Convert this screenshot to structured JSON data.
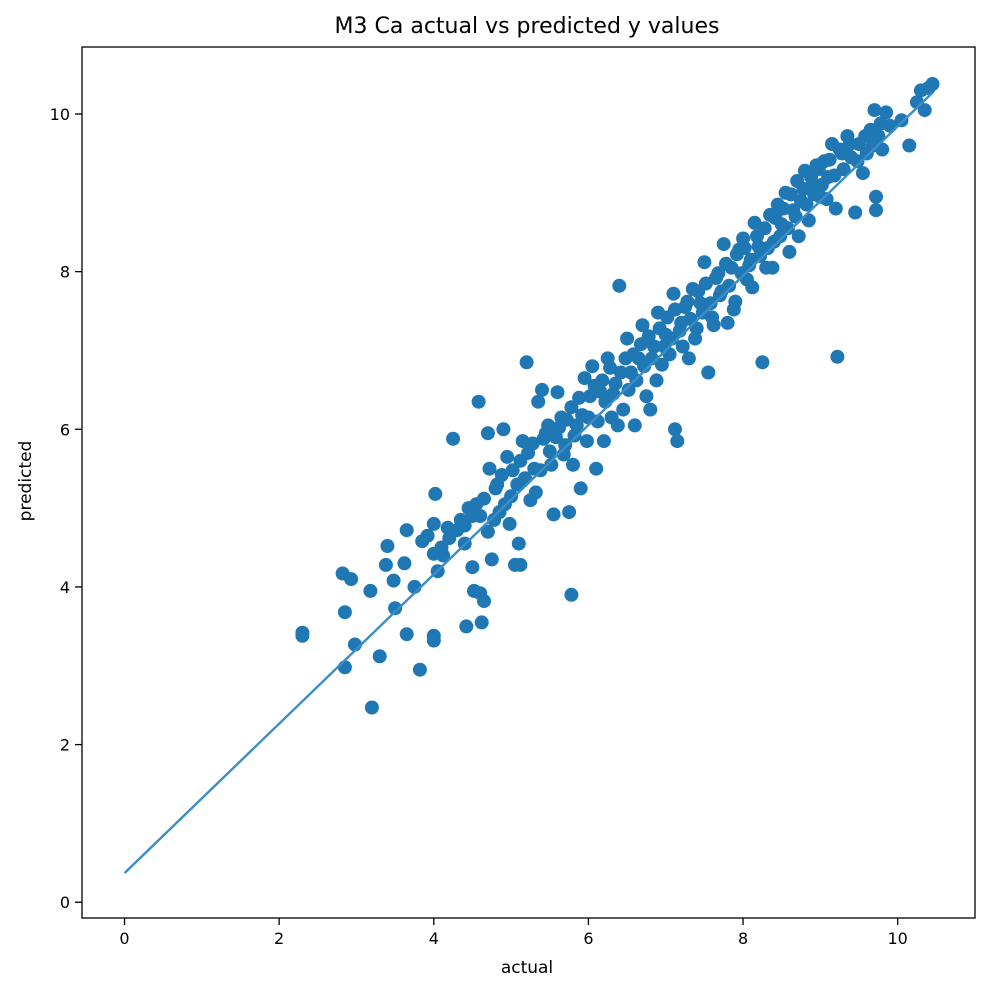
{
  "chart_data": {
    "type": "scatter",
    "title": "M3 Ca actual vs predicted y values",
    "xlabel": "actual",
    "ylabel": "predicted",
    "xlim": [
      -0.55,
      11.0
    ],
    "ylim": [
      -0.2,
      10.85
    ],
    "xticks": [
      0,
      2,
      4,
      6,
      8,
      10
    ],
    "yticks": [
      0,
      2,
      4,
      6,
      8,
      10
    ],
    "xtick_labels": [
      "0",
      "2",
      "4",
      "6",
      "8",
      "10"
    ],
    "ytick_labels": [
      "0",
      "2",
      "4",
      "6",
      "8",
      "10"
    ],
    "grid": false,
    "point_color": "#1f77b4",
    "line_color": "#3b8dc7",
    "fit_line": {
      "x": [
        0,
        10.45
      ],
      "y": [
        0.37,
        10.27
      ]
    },
    "series": [
      {
        "name": "actual vs predicted",
        "points": [
          [
            2.3,
            3.38
          ],
          [
            2.3,
            3.42
          ],
          [
            2.82,
            4.17
          ],
          [
            2.85,
            3.68
          ],
          [
            2.85,
            2.98
          ],
          [
            2.93,
            4.1
          ],
          [
            2.98,
            3.27
          ],
          [
            3.18,
            3.95
          ],
          [
            3.2,
            2.47
          ],
          [
            3.3,
            3.12
          ],
          [
            3.38,
            4.28
          ],
          [
            3.4,
            4.52
          ],
          [
            3.48,
            4.08
          ],
          [
            3.5,
            3.73
          ],
          [
            3.62,
            4.3
          ],
          [
            3.65,
            3.4
          ],
          [
            3.65,
            4.72
          ],
          [
            3.75,
            4.0
          ],
          [
            3.82,
            2.95
          ],
          [
            3.85,
            4.58
          ],
          [
            3.92,
            4.65
          ],
          [
            4.0,
            4.8
          ],
          [
            4.0,
            3.38
          ],
          [
            4.0,
            3.32
          ],
          [
            4.02,
            5.18
          ],
          [
            4.05,
            4.2
          ],
          [
            4.12,
            4.4
          ],
          [
            4.18,
            4.75
          ],
          [
            4.25,
            5.88
          ],
          [
            4.35,
            4.85
          ],
          [
            4.4,
            4.55
          ],
          [
            4.42,
            3.5
          ],
          [
            4.45,
            5.0
          ],
          [
            4.5,
            4.25
          ],
          [
            4.52,
            3.95
          ],
          [
            4.58,
            6.35
          ],
          [
            4.6,
            3.92
          ],
          [
            4.6,
            4.9
          ],
          [
            4.62,
            3.55
          ],
          [
            4.65,
            3.82
          ],
          [
            4.7,
            5.95
          ],
          [
            4.72,
            5.5
          ],
          [
            4.75,
            4.35
          ],
          [
            4.8,
            5.25
          ],
          [
            4.85,
            4.95
          ],
          [
            4.9,
            6.0
          ],
          [
            4.95,
            5.65
          ],
          [
            5.0,
            5.15
          ],
          [
            5.05,
            4.28
          ],
          [
            5.1,
            4.55
          ],
          [
            5.12,
            4.28
          ],
          [
            5.15,
            5.85
          ],
          [
            5.2,
            6.85
          ],
          [
            5.25,
            5.1
          ],
          [
            5.3,
            5.5
          ],
          [
            5.35,
            6.35
          ],
          [
            5.4,
            6.5
          ],
          [
            5.45,
            5.95
          ],
          [
            5.5,
            5.72
          ],
          [
            5.55,
            4.92
          ],
          [
            5.6,
            6.47
          ],
          [
            5.65,
            6.15
          ],
          [
            5.7,
            5.8
          ],
          [
            5.75,
            4.95
          ],
          [
            5.78,
            3.9
          ],
          [
            5.8,
            5.55
          ],
          [
            5.85,
            6.05
          ],
          [
            5.9,
            5.25
          ],
          [
            5.95,
            6.65
          ],
          [
            6.0,
            6.15
          ],
          [
            6.05,
            6.8
          ],
          [
            6.1,
            5.5
          ],
          [
            6.15,
            6.48
          ],
          [
            6.2,
            5.85
          ],
          [
            6.25,
            6.9
          ],
          [
            6.3,
            6.15
          ],
          [
            6.35,
            6.58
          ],
          [
            6.4,
            7.82
          ],
          [
            6.45,
            6.25
          ],
          [
            6.5,
            7.15
          ],
          [
            6.55,
            6.72
          ],
          [
            6.6,
            6.05
          ],
          [
            6.65,
            6.9
          ],
          [
            6.7,
            7.32
          ],
          [
            6.75,
            6.42
          ],
          [
            6.8,
            6.25
          ],
          [
            6.85,
            7.05
          ],
          [
            6.9,
            7.48
          ],
          [
            6.95,
            6.82
          ],
          [
            7.0,
            7.2
          ],
          [
            7.05,
            6.95
          ],
          [
            7.1,
            7.72
          ],
          [
            7.12,
            6.0
          ],
          [
            7.15,
            5.85
          ],
          [
            7.2,
            7.35
          ],
          [
            7.25,
            7.55
          ],
          [
            7.3,
            6.9
          ],
          [
            7.35,
            7.78
          ],
          [
            7.4,
            7.28
          ],
          [
            7.45,
            7.6
          ],
          [
            7.5,
            8.12
          ],
          [
            7.55,
            6.72
          ],
          [
            7.6,
            7.42
          ],
          [
            7.65,
            7.92
          ],
          [
            7.7,
            7.7
          ],
          [
            7.75,
            8.35
          ],
          [
            7.8,
            7.35
          ],
          [
            7.85,
            8.05
          ],
          [
            7.9,
            7.62
          ],
          [
            7.95,
            8.28
          ],
          [
            8.0,
            8.42
          ],
          [
            8.05,
            7.9
          ],
          [
            8.1,
            8.15
          ],
          [
            8.15,
            8.62
          ],
          [
            8.2,
            8.32
          ],
          [
            8.25,
            6.85
          ],
          [
            8.3,
            8.05
          ],
          [
            8.35,
            8.72
          ],
          [
            8.4,
            8.38
          ],
          [
            8.45,
            8.85
          ],
          [
            8.5,
            8.6
          ],
          [
            8.55,
            9.0
          ],
          [
            8.6,
            8.25
          ],
          [
            8.65,
            8.78
          ],
          [
            8.7,
            9.15
          ],
          [
            8.75,
            8.9
          ],
          [
            8.8,
            9.28
          ],
          [
            8.85,
            8.65
          ],
          [
            8.9,
            9.1
          ],
          [
            8.95,
            9.35
          ],
          [
            9.0,
            8.95
          ],
          [
            9.05,
            9.4
          ],
          [
            9.1,
            9.2
          ],
          [
            9.15,
            9.62
          ],
          [
            9.2,
            8.8
          ],
          [
            9.22,
            6.92
          ],
          [
            9.25,
            9.55
          ],
          [
            9.3,
            9.3
          ],
          [
            9.35,
            9.72
          ],
          [
            9.4,
            9.45
          ],
          [
            9.45,
            8.75
          ],
          [
            9.5,
            9.62
          ],
          [
            9.55,
            9.25
          ],
          [
            9.6,
            9.5
          ],
          [
            9.65,
            9.8
          ],
          [
            9.7,
            10.05
          ],
          [
            9.72,
            8.95
          ],
          [
            9.72,
            8.78
          ],
          [
            9.75,
            9.72
          ],
          [
            9.8,
            9.55
          ],
          [
            9.85,
            10.02
          ],
          [
            9.9,
            9.85
          ],
          [
            10.05,
            9.92
          ],
          [
            10.15,
            9.6
          ],
          [
            10.25,
            10.15
          ],
          [
            10.3,
            10.3
          ],
          [
            10.35,
            10.05
          ],
          [
            10.45,
            10.38
          ],
          [
            10.4,
            10.33
          ],
          [
            4.0,
            4.42
          ],
          [
            4.1,
            4.5
          ],
          [
            4.2,
            4.62
          ],
          [
            4.3,
            4.72
          ],
          [
            4.4,
            4.78
          ],
          [
            4.5,
            4.9
          ],
          [
            4.55,
            5.05
          ],
          [
            4.65,
            5.12
          ],
          [
            4.7,
            4.7
          ],
          [
            4.78,
            4.85
          ],
          [
            4.82,
            5.3
          ],
          [
            4.88,
            5.42
          ],
          [
            4.92,
            5.05
          ],
          [
            4.98,
            4.8
          ],
          [
            5.02,
            5.48
          ],
          [
            5.08,
            5.3
          ],
          [
            5.12,
            5.6
          ],
          [
            5.18,
            5.38
          ],
          [
            5.22,
            5.7
          ],
          [
            5.28,
            5.82
          ],
          [
            5.32,
            5.2
          ],
          [
            5.38,
            5.48
          ],
          [
            5.42,
            5.88
          ],
          [
            5.48,
            6.05
          ],
          [
            5.52,
            5.55
          ],
          [
            5.58,
            5.9
          ],
          [
            5.62,
            6.02
          ],
          [
            5.68,
            5.68
          ],
          [
            5.72,
            6.12
          ],
          [
            5.78,
            6.28
          ],
          [
            5.82,
            5.92
          ],
          [
            5.88,
            6.4
          ],
          [
            5.92,
            6.18
          ],
          [
            5.98,
            5.85
          ],
          [
            6.02,
            6.42
          ],
          [
            6.08,
            6.55
          ],
          [
            6.12,
            6.1
          ],
          [
            6.18,
            6.62
          ],
          [
            6.22,
            6.35
          ],
          [
            6.28,
            6.78
          ],
          [
            6.32,
            6.45
          ],
          [
            6.38,
            6.05
          ],
          [
            6.42,
            6.72
          ],
          [
            6.48,
            6.9
          ],
          [
            6.52,
            6.5
          ],
          [
            6.58,
            6.95
          ],
          [
            6.62,
            6.62
          ],
          [
            6.68,
            7.08
          ],
          [
            6.72,
            6.8
          ],
          [
            6.78,
            7.18
          ],
          [
            6.82,
            6.9
          ],
          [
            6.88,
            6.62
          ],
          [
            6.92,
            7.28
          ],
          [
            6.98,
            7.05
          ],
          [
            7.02,
            7.42
          ],
          [
            7.08,
            7.15
          ],
          [
            7.12,
            7.52
          ],
          [
            7.18,
            7.25
          ],
          [
            7.22,
            7.05
          ],
          [
            7.28,
            7.62
          ],
          [
            7.32,
            7.4
          ],
          [
            7.38,
            7.15
          ],
          [
            7.42,
            7.75
          ],
          [
            7.48,
            7.48
          ],
          [
            7.52,
            7.85
          ],
          [
            7.58,
            7.6
          ],
          [
            7.62,
            7.32
          ],
          [
            7.68,
            7.98
          ],
          [
            7.72,
            7.75
          ],
          [
            7.78,
            8.1
          ],
          [
            7.82,
            7.82
          ],
          [
            7.88,
            7.52
          ],
          [
            7.92,
            8.22
          ],
          [
            7.98,
            7.98
          ],
          [
            8.02,
            8.3
          ],
          [
            8.08,
            8.08
          ],
          [
            8.12,
            7.8
          ],
          [
            8.18,
            8.45
          ],
          [
            8.22,
            8.2
          ],
          [
            8.28,
            8.55
          ],
          [
            8.32,
            8.3
          ],
          [
            8.38,
            8.05
          ],
          [
            8.42,
            8.68
          ],
          [
            8.48,
            8.45
          ],
          [
            8.52,
            8.8
          ],
          [
            8.58,
            8.55
          ],
          [
            8.62,
            8.98
          ],
          [
            8.68,
            8.7
          ],
          [
            8.72,
            8.45
          ],
          [
            8.78,
            9.05
          ],
          [
            8.82,
            8.85
          ],
          [
            8.88,
            9.2
          ],
          [
            8.92,
            8.98
          ],
          [
            8.98,
            9.3
          ],
          [
            9.02,
            9.1
          ],
          [
            9.08,
            8.92
          ],
          [
            9.12,
            9.42
          ],
          [
            9.18,
            9.22
          ],
          [
            9.28,
            9.5
          ],
          [
            9.38,
            9.62
          ],
          [
            9.48,
            9.4
          ],
          [
            9.58,
            9.72
          ],
          [
            9.68,
            9.6
          ],
          [
            9.78,
            9.88
          ]
        ]
      }
    ]
  }
}
